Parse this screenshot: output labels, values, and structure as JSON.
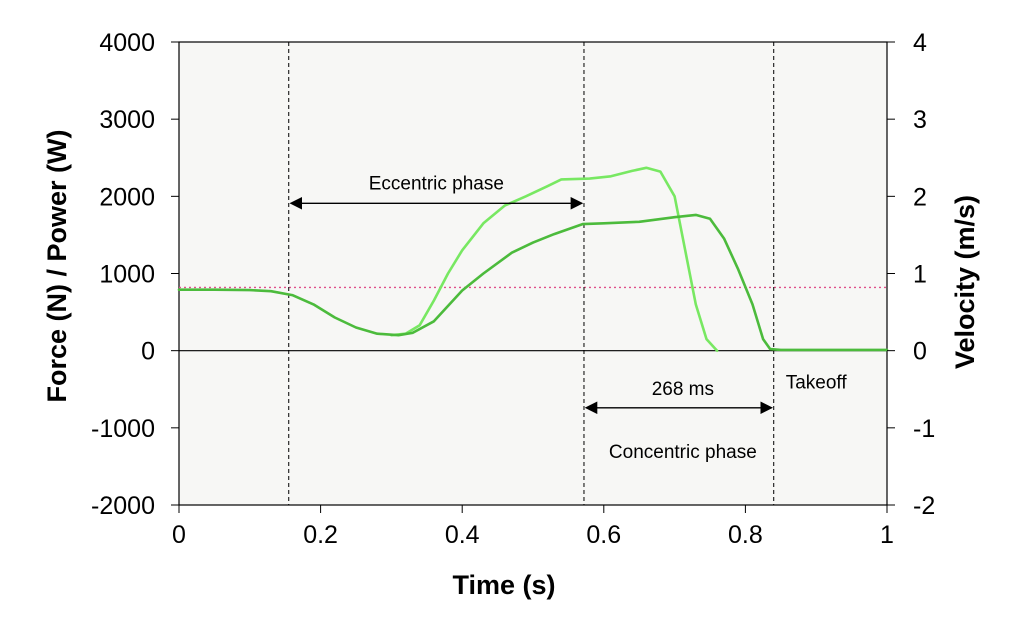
{
  "chart_data": {
    "type": "line",
    "title": "",
    "xlabel": "Time (s)",
    "ylabel_left": "Force (N) / Power (W)",
    "ylabel_right": "Velocity (m/s)",
    "xlim": [
      0,
      1
    ],
    "ylim_left": [
      -2000,
      4000
    ],
    "ylim_right": [
      -2,
      4
    ],
    "x_ticks": [
      0,
      0.2,
      0.4,
      0.6,
      0.8,
      1
    ],
    "x_tick_labels": [
      "0",
      "0.2",
      "0.4",
      "0.6",
      "0.8",
      "1"
    ],
    "y_left_ticks": [
      4000,
      3000,
      2000,
      1000,
      0,
      -1000,
      -2000
    ],
    "y_left_tick_labels": [
      "4000",
      "3000",
      "2000",
      "1000",
      "0",
      "-1000",
      "-2000"
    ],
    "y_right_ticks": [
      4,
      3,
      2,
      1,
      0,
      -1,
      -2
    ],
    "y_right_tick_labels": [
      "4",
      "3",
      "2",
      "1",
      "0",
      "-1",
      "-2"
    ],
    "grid": false,
    "legend": "none",
    "colors": {
      "plot_background": "#f7f7f5",
      "series_dark": "#4cbb3c",
      "series_light": "#78e862",
      "reference_line": "#e0508a"
    },
    "series": [
      {
        "values_force": [
          [
            0,
            790
          ],
          [
            0.05,
            790
          ],
          [
            0.1,
            785
          ],
          [
            0.13,
            770
          ],
          [
            0.16,
            720
          ],
          [
            0.19,
            600
          ],
          [
            0.22,
            430
          ],
          [
            0.25,
            300
          ],
          [
            0.28,
            220
          ],
          [
            0.31,
            200
          ],
          [
            0.33,
            230
          ],
          [
            0.36,
            380
          ],
          [
            0.4,
            780
          ],
          [
            0.43,
            1000
          ],
          [
            0.47,
            1270
          ],
          [
            0.5,
            1400
          ],
          [
            0.53,
            1510
          ],
          [
            0.57,
            1640
          ],
          [
            0.6,
            1650
          ],
          [
            0.65,
            1670
          ],
          [
            0.7,
            1730
          ],
          [
            0.73,
            1760
          ],
          [
            0.75,
            1710
          ],
          [
            0.77,
            1450
          ],
          [
            0.79,
            1050
          ],
          [
            0.81,
            600
          ],
          [
            0.825,
            150
          ],
          [
            0.835,
            20
          ],
          [
            0.85,
            10
          ],
          [
            1,
            10
          ]
        ]
      },
      {
        "values_other": [
          [
            0.3,
            200
          ],
          [
            0.32,
            220
          ],
          [
            0.34,
            330
          ],
          [
            0.36,
            650
          ],
          [
            0.38,
            1000
          ],
          [
            0.4,
            1300
          ],
          [
            0.43,
            1650
          ],
          [
            0.46,
            1880
          ],
          [
            0.49,
            2000
          ],
          [
            0.52,
            2130
          ],
          [
            0.54,
            2220
          ],
          [
            0.58,
            2230
          ],
          [
            0.61,
            2260
          ],
          [
            0.64,
            2330
          ],
          [
            0.66,
            2370
          ],
          [
            0.68,
            2320
          ],
          [
            0.7,
            2000
          ],
          [
            0.715,
            1300
          ],
          [
            0.73,
            600
          ],
          [
            0.745,
            150
          ],
          [
            0.76,
            0
          ]
        ]
      }
    ],
    "reference_line": {
      "y": 820
    },
    "phase_markers_x": [
      0.155,
      0.572,
      0.84
    ],
    "annotations": {
      "eccentric_label": "Eccentric phase",
      "eccentric_span": [
        0.155,
        0.572
      ],
      "eccentric_y": 1910,
      "duration_label": "268 ms",
      "concentric_span": [
        0.572,
        0.84
      ],
      "concentric_y": -740,
      "concentric_label": "Concentric phase",
      "takeoff_label": "Takeoff"
    }
  }
}
